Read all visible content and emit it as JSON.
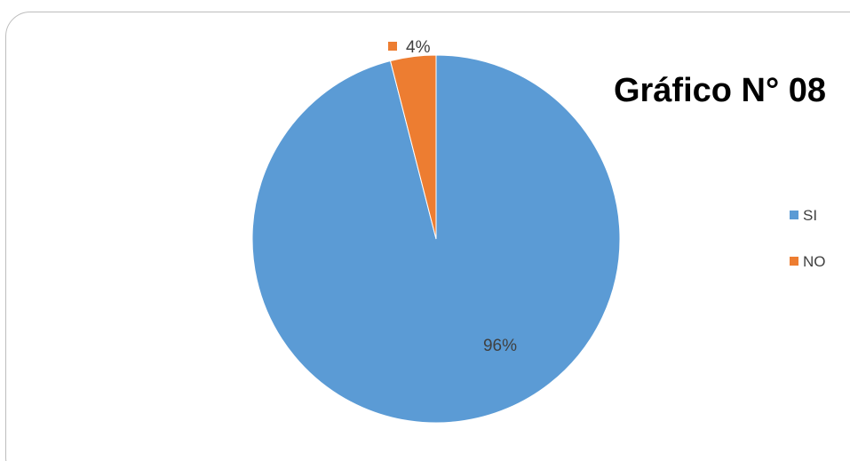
{
  "chart_data": {
    "type": "pie",
    "title": "Gráfico N° 08",
    "categories": [
      "SI",
      "NO"
    ],
    "values": [
      96,
      4
    ],
    "value_labels": [
      "96%",
      "4%"
    ],
    "colors": [
      "#5B9BD5",
      "#ED7D31"
    ],
    "legend": {
      "placement": "right",
      "entries": [
        "SI",
        "NO"
      ]
    },
    "start_angle_deg": 0,
    "direction": "clockwise"
  }
}
